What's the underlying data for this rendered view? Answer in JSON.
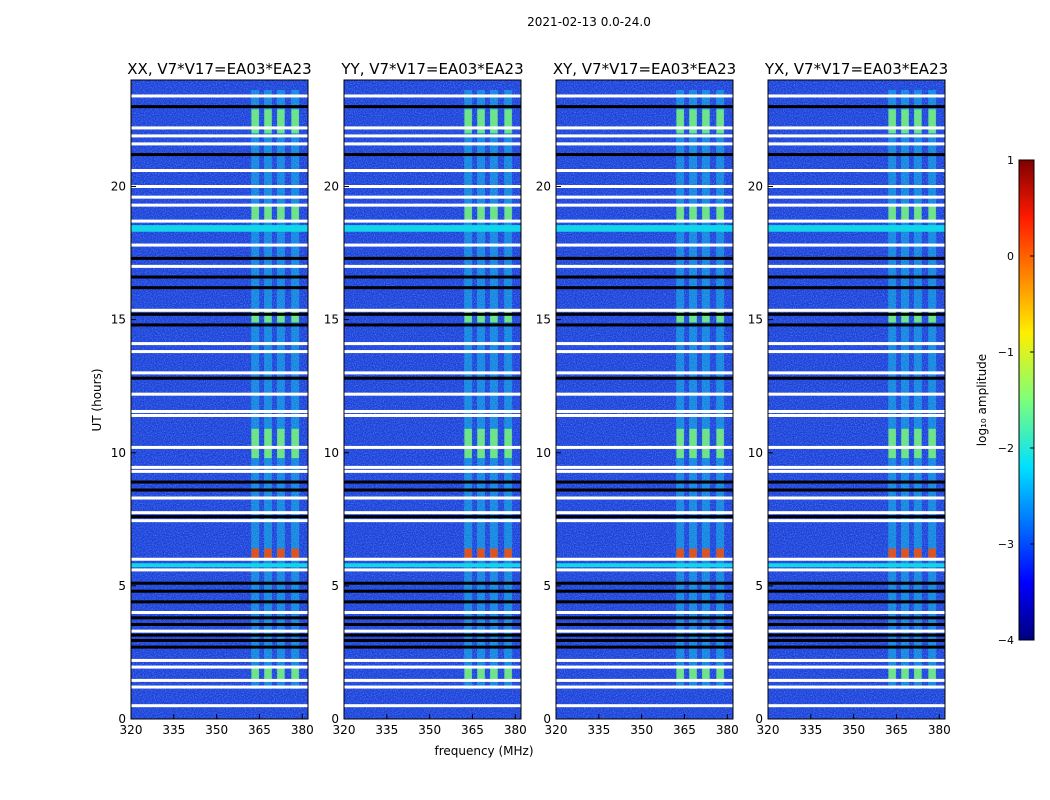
{
  "figure_title": "2021-02-13 0.0-24.0",
  "chart_data": [
    {
      "type": "heatmap",
      "title": "XX, V7*V17=EA03*EA23",
      "xlabel": "",
      "ylabel": "UT (hours)",
      "xlim": [
        320,
        382
      ],
      "ylim": [
        0,
        24
      ],
      "xticks": [
        "320",
        "335",
        "350",
        "365",
        "380"
      ],
      "yticks": [
        "0",
        "5",
        "10",
        "15",
        "20"
      ]
    },
    {
      "type": "heatmap",
      "title": "YY, V7*V17=EA03*EA23",
      "xlabel": "frequency (MHz)",
      "ylabel": "",
      "xlim": [
        320,
        382
      ],
      "ylim": [
        0,
        24
      ],
      "xticks": [
        "320",
        "335",
        "350",
        "365",
        "380"
      ],
      "yticks": [
        "0",
        "5",
        "10",
        "15",
        "20"
      ]
    },
    {
      "type": "heatmap",
      "title": "XY, V7*V17=EA03*EA23",
      "xlabel": "",
      "ylabel": "",
      "xlim": [
        320,
        382
      ],
      "ylim": [
        0,
        24
      ],
      "xticks": [
        "320",
        "335",
        "350",
        "365",
        "380"
      ],
      "yticks": [
        "0",
        "5",
        "10",
        "15",
        "20"
      ]
    },
    {
      "type": "heatmap",
      "title": "YX, V7*V17=EA03*EA23",
      "xlabel": "",
      "ylabel": "",
      "xlim": [
        320,
        382
      ],
      "ylim": [
        0,
        24
      ],
      "xticks": [
        "320",
        "335",
        "350",
        "365",
        "380"
      ],
      "yticks": [
        "0",
        "5",
        "10",
        "15",
        "20"
      ]
    }
  ],
  "colorbar": {
    "label": "log₁₀ amplitude",
    "range": [
      -4,
      1
    ],
    "ticks": [
      "1",
      "0",
      "−1",
      "−2",
      "−3",
      "−4"
    ]
  },
  "colors": {
    "background_level": "#1b3fd9",
    "band_level": "#7ef27a",
    "peak_level": "#ff4a00",
    "cyan_level": "#11d6e8",
    "flag_white": "#ffffff",
    "flag_black": "#000000"
  }
}
